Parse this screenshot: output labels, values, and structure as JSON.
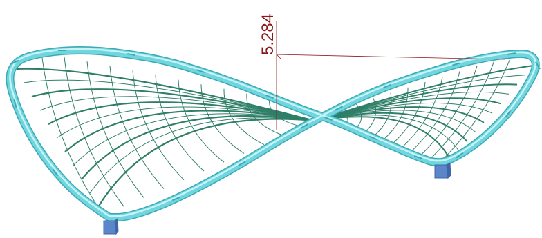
{
  "scene": {
    "dimension_label": "5.284",
    "colors": {
      "background": "#ffffff",
      "frame_tube": "#6fd6de",
      "frame_tube_edge": "#3aaab6",
      "frame_highlight": "#c9f3f6",
      "cable_net": "#2f7f68",
      "support": "#5b86c9",
      "support_edge": "#3f67a8",
      "dimension": "#8b1a1a"
    },
    "icons": {
      "support": "pinned-support-icon"
    }
  }
}
